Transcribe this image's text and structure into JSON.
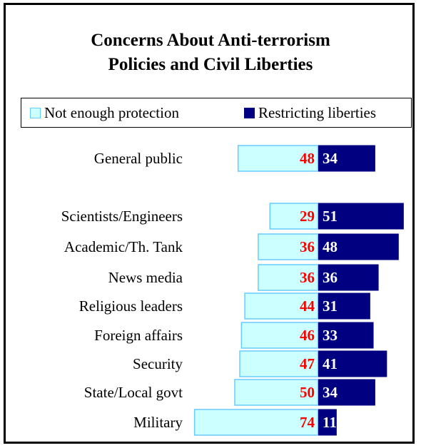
{
  "chart_data": {
    "type": "bar",
    "title_lines": [
      "Concerns About Anti-terrorism",
      "Policies and Civil Liberties"
    ],
    "categories": [
      "General public",
      "Scientists/Engineers",
      "Academic/Th. Tank",
      "News media",
      "Religious leaders",
      "Foreign affairs",
      "Security",
      "State/Local govt",
      "Military"
    ],
    "series": [
      {
        "name": "Not enough protection",
        "color": "#ccffff",
        "border": "#66ccff",
        "label_color": "#ff0000",
        "values": [
          48,
          29,
          36,
          36,
          44,
          46,
          47,
          50,
          74
        ]
      },
      {
        "name": "Restricting liberties",
        "color": "#000080",
        "border": "#000080",
        "label_color": "#ffffff",
        "values": [
          34,
          51,
          48,
          36,
          31,
          33,
          41,
          34,
          11
        ]
      }
    ],
    "legend_position": "top",
    "grid": false,
    "xlabel": "",
    "ylabel": ""
  }
}
